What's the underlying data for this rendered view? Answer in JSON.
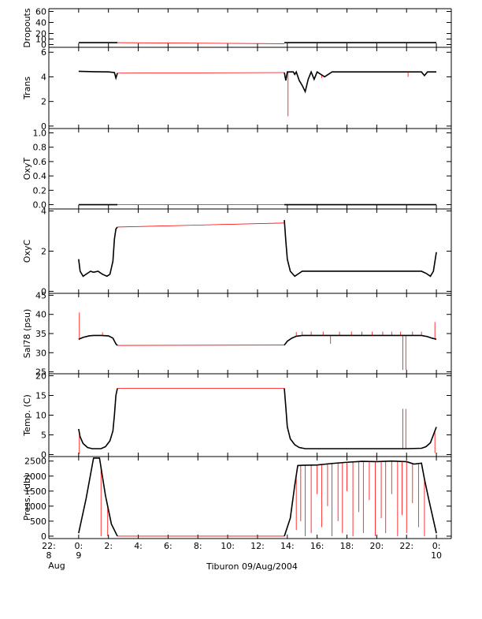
{
  "chart_data": {
    "type": "line",
    "caption": "Tiburon 09/Aug/2004",
    "colors": {
      "measured": "#000000",
      "interpolated": "#ff0000"
    },
    "x_axis": {
      "unit": "hours relative to 00:00 09/Aug/2004",
      "range": [
        -2,
        25
      ],
      "ticks": [
        {
          "x": -2,
          "label": "22:",
          "label2": "8",
          "label3": "Aug"
        },
        {
          "x": 0,
          "label": "0:",
          "label2": "9",
          "label3": ""
        },
        {
          "x": 2,
          "label": "2:",
          "label2": "",
          "label3": ""
        },
        {
          "x": 4,
          "label": "4:",
          "label2": "",
          "label3": ""
        },
        {
          "x": 6,
          "label": "6:",
          "label2": "",
          "label3": ""
        },
        {
          "x": 8,
          "label": "8:",
          "label2": "",
          "label3": ""
        },
        {
          "x": 10,
          "label": "10:",
          "label2": "",
          "label3": ""
        },
        {
          "x": 12,
          "label": "12:",
          "label2": "",
          "label3": ""
        },
        {
          "x": 14,
          "label": "14:",
          "label2": "",
          "label3": ""
        },
        {
          "x": 16,
          "label": "16:",
          "label2": "",
          "label3": ""
        },
        {
          "x": 18,
          "label": "18:",
          "label2": "",
          "label3": ""
        },
        {
          "x": 20,
          "label": "20:",
          "label2": "",
          "label3": ""
        },
        {
          "x": 22,
          "label": "22:",
          "label2": "",
          "label3": ""
        },
        {
          "x": 24,
          "label": "0:",
          "label2": "10",
          "label3": ""
        }
      ]
    },
    "panels": [
      {
        "id": "dropouts",
        "ylabel": "Dropouts",
        "ylim": [
          -5,
          65
        ],
        "yticks": [
          0,
          10,
          20,
          40,
          60
        ],
        "segments": [
          {
            "x": [
              0.0,
              0.5,
              1.0,
              1.5,
              2.0,
              2.6
            ],
            "y": [
              3.5,
              3.5,
              3.5,
              3.5,
              3.5,
              3.5
            ]
          },
          {
            "x": [
              13.8,
              16,
              18,
              20,
              22,
              24.0
            ],
            "y": [
              3.5,
              3.5,
              3.5,
              3.5,
              3.5,
              3.5
            ]
          }
        ],
        "red": [
          {
            "x": [
              2.6,
              13.8
            ],
            "y": [
              3.5,
              1.5
            ]
          }
        ],
        "spikes": []
      },
      {
        "id": "trans",
        "ylabel": "Trans",
        "ylim": [
          -0.2,
          6.4
        ],
        "yticks": [
          0,
          2,
          4,
          6
        ],
        "segments": [
          {
            "x": [
              0.0,
              1.0,
              2.0,
              2.4,
              2.5,
              2.6
            ],
            "y": [
              4.45,
              4.42,
              4.4,
              4.35,
              3.9,
              4.3
            ]
          },
          {
            "x": [
              13.8,
              13.9,
              14.0,
              14.2,
              14.4,
              14.5,
              14.6,
              14.8,
              15.0,
              15.2,
              15.4,
              15.6,
              15.8,
              16.0,
              16.5,
              17.0,
              20.0,
              22.0,
              23.0,
              23.2,
              23.4,
              24.0
            ],
            "y": [
              4.35,
              3.7,
              4.4,
              4.4,
              4.4,
              4.2,
              4.4,
              3.7,
              3.3,
              2.8,
              3.8,
              4.4,
              3.8,
              4.4,
              4.0,
              4.4,
              4.4,
              4.4,
              4.4,
              4.1,
              4.4,
              4.4
            ]
          }
        ],
        "red": [
          {
            "x": [
              2.6,
              13.8
            ],
            "y": [
              4.3,
              4.35
            ]
          }
        ],
        "spikes": [
          {
            "x": 14.05,
            "y": 0.8
          },
          {
            "x": 14.9,
            "y": 3.6
          },
          {
            "x": 16.3,
            "y": 3.9
          },
          {
            "x": 22.1,
            "y": 4.0
          }
        ]
      },
      {
        "id": "oxyt",
        "ylabel": "OxyT",
        "ylim": [
          -0.06,
          1.06
        ],
        "yticks": [
          0.0,
          0.2,
          0.4,
          0.6,
          0.8,
          1.0
        ],
        "segments": [
          {
            "x": [
              0.0,
              2.6
            ],
            "y": [
              0.0,
              0.0
            ]
          },
          {
            "x": [
              13.8,
              24.0
            ],
            "y": [
              0.0,
              0.0
            ]
          }
        ],
        "red": [
          {
            "x": [
              2.6,
              13.8
            ],
            "y": [
              0.0,
              0.0
            ]
          }
        ],
        "spikes": []
      },
      {
        "id": "oxyc",
        "ylabel": "OxyC",
        "ylim": [
          -0.1,
          4.1
        ],
        "yticks": [
          0,
          2,
          4
        ],
        "segments": [
          {
            "x": [
              0.0,
              0.1,
              0.3,
              0.6,
              0.8,
              1.0,
              1.3,
              1.6,
              1.9,
              2.1,
              2.3,
              2.4,
              2.5,
              2.6
            ],
            "y": [
              1.6,
              1.0,
              0.75,
              0.9,
              1.0,
              0.95,
              1.0,
              0.85,
              0.75,
              0.85,
              1.5,
              2.6,
              3.1,
              3.2
            ]
          },
          {
            "x": [
              13.8,
              13.9,
              14.0,
              14.2,
              14.5,
              14.8,
              15.0,
              16.0,
              18.0,
              20.0,
              22.0,
              23.0,
              23.3,
              23.6,
              23.8,
              24.0
            ],
            "y": [
              3.55,
              2.5,
              1.6,
              1.0,
              0.75,
              0.9,
              1.0,
              1.0,
              1.0,
              1.0,
              1.0,
              1.0,
              0.9,
              0.75,
              1.0,
              1.95
            ]
          }
        ],
        "red": [
          {
            "x": [
              2.6,
              13.8
            ],
            "y": [
              3.2,
              3.4
            ]
          }
        ],
        "spikes": []
      },
      {
        "id": "sal",
        "ylabel": "Sal78 (psu)",
        "ylim": [
          24.5,
          45.5
        ],
        "yticks": [
          25,
          30,
          35,
          40,
          45
        ],
        "segments": [
          {
            "x": [
              0.0,
              0.3,
              0.7,
              1.0,
              1.5,
              2.0,
              2.3,
              2.5,
              2.6
            ],
            "y": [
              33.5,
              34.0,
              34.4,
              34.5,
              34.5,
              34.4,
              33.8,
              32.3,
              31.9
            ]
          },
          {
            "x": [
              13.8,
              14.0,
              14.3,
              14.6,
              15.0,
              16.0,
              18.0,
              20.0,
              22.0,
              23.0,
              23.4,
              23.7,
              24.0
            ],
            "y": [
              32.0,
              33.0,
              33.8,
              34.3,
              34.5,
              34.5,
              34.5,
              34.5,
              34.5,
              34.5,
              34.2,
              33.8,
              33.5
            ]
          }
        ],
        "red": [
          {
            "x": [
              2.6,
              13.8
            ],
            "y": [
              31.9,
              32.0
            ]
          }
        ],
        "spikes": [
          {
            "x": 0.05,
            "y": 40.5
          },
          {
            "x": 1.6,
            "y": 35.3
          },
          {
            "x": 14.6,
            "y": 35.4
          },
          {
            "x": 15.0,
            "y": 35.5
          },
          {
            "x": 15.6,
            "y": 35.5
          },
          {
            "x": 16.4,
            "y": 35.5
          },
          {
            "x": 16.9,
            "y": 32.3
          },
          {
            "x": 17.5,
            "y": 35.5
          },
          {
            "x": 18.3,
            "y": 35.5
          },
          {
            "x": 19.0,
            "y": 35.5
          },
          {
            "x": 19.7,
            "y": 35.5
          },
          {
            "x": 20.4,
            "y": 35.5
          },
          {
            "x": 21.0,
            "y": 35.5
          },
          {
            "x": 21.6,
            "y": 35.5
          },
          {
            "x": 21.75,
            "y": 25.5
          },
          {
            "x": 21.95,
            "y": 25.5
          },
          {
            "x": 22.4,
            "y": 35.5
          },
          {
            "x": 23.0,
            "y": 35.5
          },
          {
            "x": 23.9,
            "y": 38.0
          }
        ]
      },
      {
        "id": "temp",
        "ylabel": "Temp. (C)",
        "ylim": [
          -0.5,
          20.5
        ],
        "yticks": [
          0,
          5,
          10,
          15,
          20
        ],
        "segments": [
          {
            "x": [
              0.0,
              0.1,
              0.3,
              0.6,
              0.9,
              1.2,
              1.5,
              1.8,
              2.1,
              2.3,
              2.4,
              2.5,
              2.6
            ],
            "y": [
              6.5,
              4.5,
              2.8,
              1.8,
              1.5,
              1.5,
              1.5,
              2.0,
              3.5,
              6.0,
              10.0,
              15.0,
              16.8
            ]
          },
          {
            "x": [
              13.8,
              13.9,
              14.0,
              14.2,
              14.5,
              14.8,
              15.2,
              16.0,
              18.0,
              20.0,
              22.0,
              23.0,
              23.3,
              23.6,
              23.8,
              24.0
            ],
            "y": [
              16.8,
              12.0,
              7.0,
              4.0,
              2.5,
              1.8,
              1.5,
              1.5,
              1.5,
              1.5,
              1.5,
              1.6,
              2.0,
              3.0,
              5.0,
              7.0
            ]
          }
        ],
        "red": [
          {
            "x": [
              2.6,
              13.8
            ],
            "y": [
              16.8,
              16.8
            ]
          }
        ],
        "spikes": [
          {
            "x": 0.05,
            "y": 0.2
          },
          {
            "x": 21.75,
            "y": 11.6
          },
          {
            "x": 21.95,
            "y": 11.6
          },
          {
            "x": 23.9,
            "y": 0.4
          }
        ]
      },
      {
        "id": "press",
        "ylabel": "Press. (db)",
        "ylim": [
          -80,
          2650
        ],
        "yticks": [
          0,
          500,
          1000,
          1500,
          2000,
          2500
        ],
        "segments": [
          {
            "x": [
              0.0,
              0.5,
              1.0,
              1.4,
              1.8,
              2.2,
              2.6
            ],
            "y": [
              100,
              1250,
              2600,
              2600,
              1350,
              400,
              0
            ]
          },
          {
            "x": [
              13.8,
              14.2,
              14.5,
              14.7,
              15.0,
              16.0,
              17.0,
              18.0,
              19.0,
              20.0,
              21.0,
              22.0,
              22.5,
              23.0,
              23.2,
              23.5,
              24.0
            ],
            "y": [
              0,
              600,
              1700,
              2350,
              2360,
              2370,
              2420,
              2460,
              2490,
              2480,
              2500,
              2480,
              2400,
              2430,
              1900,
              1200,
              100
            ]
          }
        ],
        "red": [
          {
            "x": [
              2.6,
              13.8
            ],
            "y": [
              0,
              0
            ]
          }
        ],
        "spikes": [
          {
            "x": 1.5,
            "y": 0
          },
          {
            "x": 1.95,
            "y": 0
          },
          {
            "x": 14.6,
            "y": 200
          },
          {
            "x": 14.9,
            "y": 500
          },
          {
            "x": 15.2,
            "y": 0
          },
          {
            "x": 15.6,
            "y": 100
          },
          {
            "x": 16.0,
            "y": 1400
          },
          {
            "x": 16.3,
            "y": 300
          },
          {
            "x": 16.7,
            "y": 1000
          },
          {
            "x": 17.0,
            "y": 0
          },
          {
            "x": 17.4,
            "y": 500
          },
          {
            "x": 17.7,
            "y": 100
          },
          {
            "x": 18.0,
            "y": 1500
          },
          {
            "x": 18.4,
            "y": 0
          },
          {
            "x": 18.8,
            "y": 800
          },
          {
            "x": 19.1,
            "y": 100
          },
          {
            "x": 19.5,
            "y": 1200
          },
          {
            "x": 19.9,
            "y": 0
          },
          {
            "x": 20.3,
            "y": 600
          },
          {
            "x": 20.6,
            "y": 100
          },
          {
            "x": 21.0,
            "y": 1400
          },
          {
            "x": 21.4,
            "y": 0
          },
          {
            "x": 21.7,
            "y": 700
          },
          {
            "x": 22.0,
            "y": 100
          },
          {
            "x": 22.4,
            "y": 1100
          },
          {
            "x": 22.8,
            "y": 300
          },
          {
            "x": 23.2,
            "y": 0
          }
        ]
      }
    ]
  }
}
